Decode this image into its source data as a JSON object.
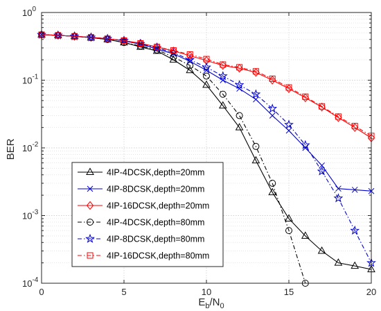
{
  "chart_data": {
    "type": "line",
    "title": "",
    "xlabel": "E_b/N_0",
    "xlabel_parts": {
      "main": "E",
      "sub1": "b",
      "slash": "/N",
      "sub2": "0"
    },
    "ylabel": "BER",
    "xlim": [
      0,
      20
    ],
    "ylim": [
      0.0001,
      1
    ],
    "yscale": "log",
    "grid": true,
    "legend_position": "center-left",
    "x_ticks": [
      0,
      5,
      10,
      15,
      20
    ],
    "x_tick_labels": [
      "0",
      "5",
      "10",
      "15",
      "20"
    ],
    "y_ticks": [
      0.0001,
      0.001,
      0.01,
      0.1,
      1
    ],
    "y_tick_labels": [
      {
        "base": "10",
        "exp": "-4"
      },
      {
        "base": "10",
        "exp": "-3"
      },
      {
        "base": "10",
        "exp": "-2"
      },
      {
        "base": "10",
        "exp": "-1"
      },
      {
        "base": "10",
        "exp": "0"
      }
    ],
    "series": [
      {
        "name": "4IP-4DCSK,depth=20mm",
        "color": "#000000",
        "dash": "solid",
        "marker": "triangle",
        "x": [
          0,
          1,
          2,
          3,
          4,
          5,
          6,
          7,
          8,
          9,
          10,
          11,
          12,
          13,
          14,
          15,
          16,
          17,
          18,
          19,
          20
        ],
        "y": [
          0.47,
          0.46,
          0.445,
          0.425,
          0.4,
          0.36,
          0.31,
          0.27,
          0.2,
          0.14,
          0.085,
          0.042,
          0.02,
          0.0065,
          0.0022,
          0.0009,
          0.0005,
          0.0003,
          0.0002,
          0.00018,
          0.00016
        ]
      },
      {
        "name": "4IP-8DCSK,depth=20mm",
        "color": "#0000cc",
        "dash": "solid",
        "marker": "x",
        "x": [
          0,
          1,
          2,
          3,
          4,
          5,
          6,
          7,
          8,
          9,
          10,
          11,
          12,
          13,
          14,
          15,
          16,
          17,
          18,
          19,
          20
        ],
        "y": [
          0.47,
          0.46,
          0.445,
          0.43,
          0.41,
          0.38,
          0.34,
          0.29,
          0.245,
          0.19,
          0.14,
          0.1,
          0.075,
          0.052,
          0.03,
          0.018,
          0.01,
          0.0055,
          0.0025,
          0.0024,
          0.0023
        ]
      },
      {
        "name": "4IP-16DCSK,depth=20mm",
        "color": "#ff0000",
        "dash": "solid",
        "marker": "diamond",
        "x": [
          0,
          1,
          2,
          3,
          4,
          5,
          6,
          7,
          8,
          9,
          10,
          11,
          12,
          13,
          14,
          15,
          16,
          17,
          18,
          19,
          20
        ],
        "y": [
          0.47,
          0.46,
          0.445,
          0.43,
          0.41,
          0.385,
          0.35,
          0.31,
          0.27,
          0.23,
          0.195,
          0.165,
          0.15,
          0.13,
          0.1,
          0.075,
          0.055,
          0.04,
          0.028,
          0.02,
          0.014
        ]
      },
      {
        "name": "4IP-4DCSK,depth=80mm",
        "color": "#000000",
        "dash": "dashdot",
        "marker": "circle",
        "x": [
          0,
          1,
          2,
          3,
          4,
          5,
          6,
          7,
          8,
          9,
          10,
          11,
          12,
          13,
          14,
          15,
          16
        ],
        "y": [
          0.47,
          0.46,
          0.445,
          0.425,
          0.4,
          0.36,
          0.32,
          0.28,
          0.22,
          0.165,
          0.115,
          0.062,
          0.03,
          0.0105,
          0.003,
          0.0006,
          0.0001
        ]
      },
      {
        "name": "4IP-8DCSK,depth=80mm",
        "color": "#0000cc",
        "dash": "dashdot",
        "marker": "star",
        "x": [
          0,
          1,
          2,
          3,
          4,
          5,
          6,
          7,
          8,
          9,
          10,
          11,
          12,
          13,
          14,
          15,
          16,
          17,
          18,
          19,
          20
        ],
        "y": [
          0.47,
          0.46,
          0.445,
          0.43,
          0.41,
          0.385,
          0.345,
          0.3,
          0.255,
          0.2,
          0.155,
          0.115,
          0.085,
          0.062,
          0.038,
          0.022,
          0.011,
          0.0045,
          0.0018,
          0.0006,
          0.0002
        ]
      },
      {
        "name": "4IP-16DCSK,depth=80mm",
        "color": "#ff0000",
        "dash": "dashdot",
        "marker": "square",
        "x": [
          0,
          1,
          2,
          3,
          4,
          5,
          6,
          7,
          8,
          9,
          10,
          11,
          12,
          13,
          14,
          15,
          16,
          17,
          18,
          19,
          20
        ],
        "y": [
          0.47,
          0.46,
          0.445,
          0.43,
          0.41,
          0.385,
          0.35,
          0.31,
          0.275,
          0.24,
          0.205,
          0.17,
          0.155,
          0.135,
          0.105,
          0.078,
          0.057,
          0.041,
          0.029,
          0.021,
          0.015
        ]
      }
    ]
  }
}
